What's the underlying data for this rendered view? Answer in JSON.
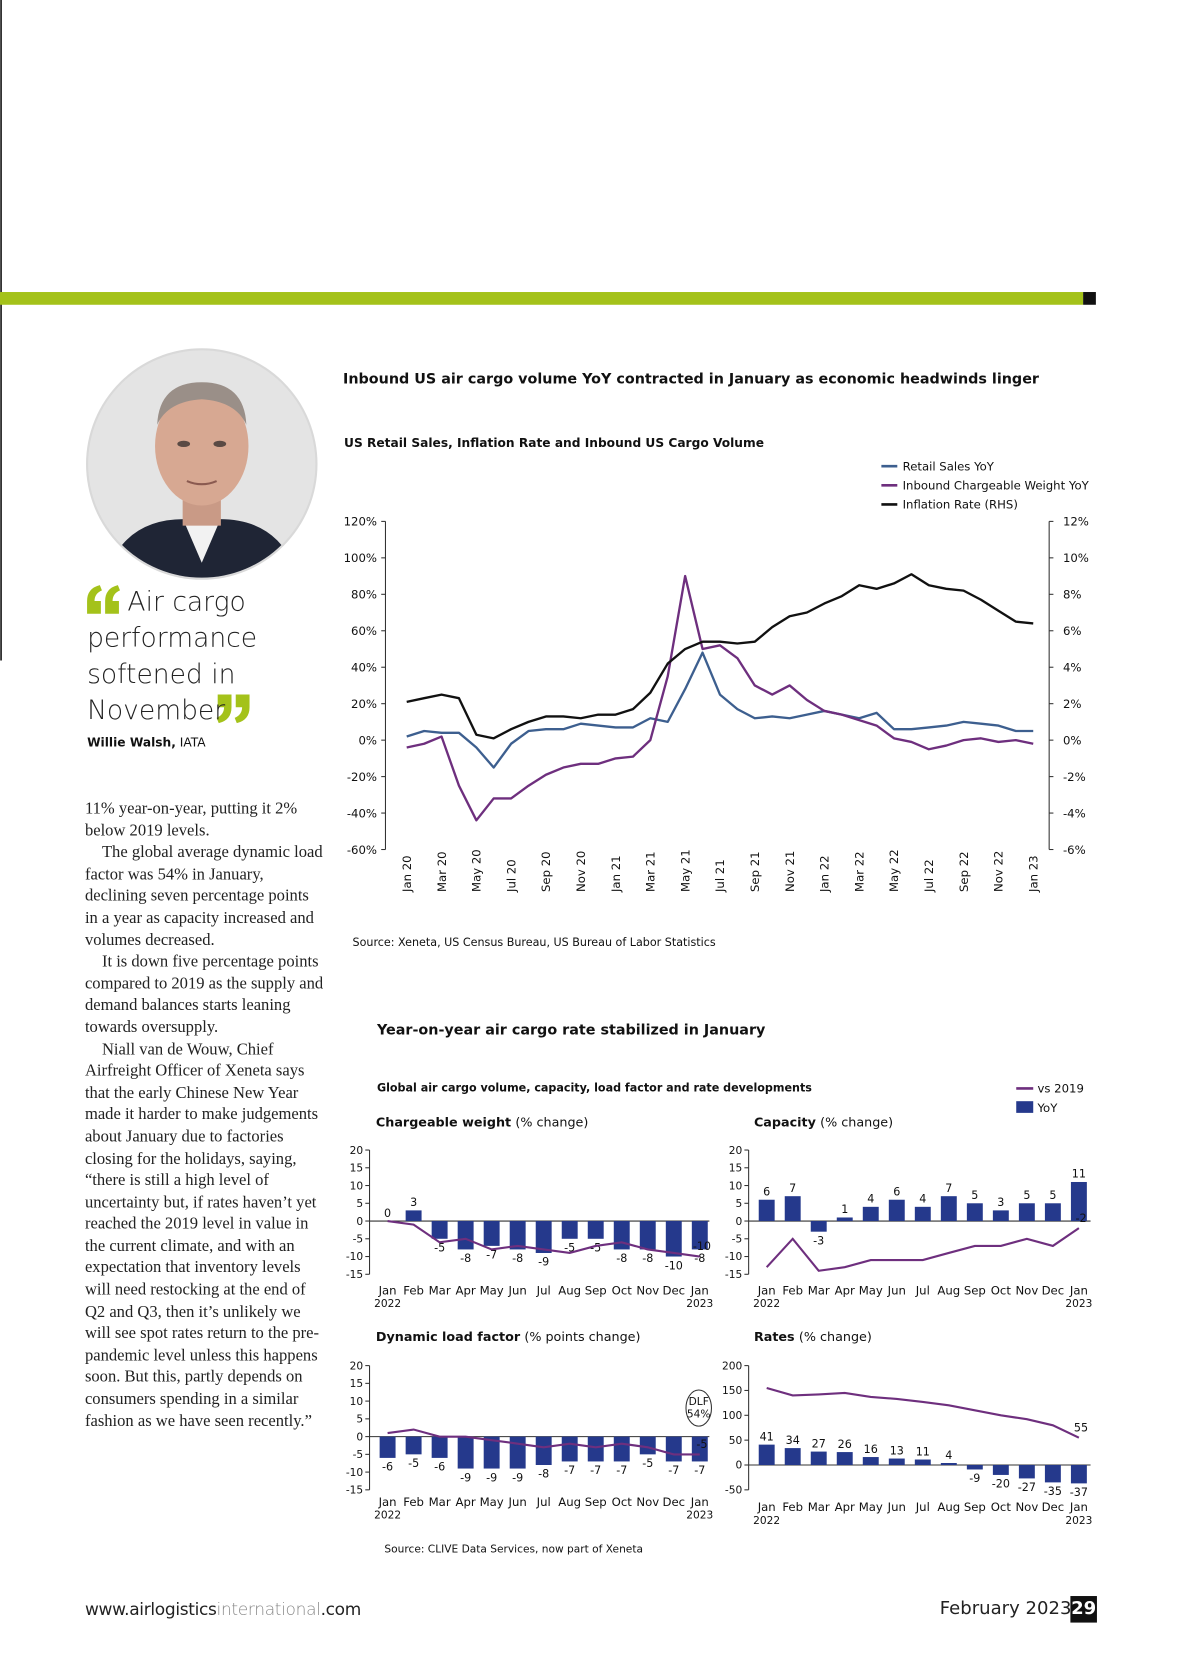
{
  "quote": {
    "text": "Air cargo performance softened in November",
    "author_name": "Willie Walsh,",
    "author_org": "IATA"
  },
  "body": [
    "11% year-on-year, putting it 2% below 2019 levels.",
    "The global average dynamic load factor was 54% in January, declining seven percentage points in a year as capacity increased and volumes decreased.",
    "It is down five percentage points compared to 2019 as the supply and demand balances starts leaning towards oversupply.",
    "Niall van de Wouw, Chief Airfreight Officer of Xeneta says that the early Chinese New Year made it harder to make judgements about January due to factories closing for the holidays, saying, “there is still a high level of uncertainty but, if rates haven’t yet reached the 2019 level in value in the current climate, and with an expectation that inventory levels will need restocking at the end of Q2 and Q3, then it’s unlikely we will see spot rates return to the pre-pandemic level unless this happens soon. But this, partly depends on consumers spending in a similar fashion as we have seen recently.”"
  ],
  "rates_section": {
    "title": "Year-on-year air cargo rate stabilized in January",
    "subtitle": "Global air cargo volume, capacity, load factor and rate developments",
    "source": "Source: CLIVE Data Services, now part of Xeneta"
  },
  "footer": {
    "url": [
      "www.airlogistics",
      "international",
      ".com"
    ],
    "date": "February 2023",
    "page": 29
  },
  "chart_data": [
    {
      "type": "line",
      "title": "Inbound US air cargo volume YoY contracted in January as economic headwinds linger",
      "subtitle": "US Retail Sales, Inflation Rate and Inbound US Cargo Volume",
      "source": "Source: Xeneta, US Census Bureau, US Bureau of Labor Statistics",
      "categories": [
        "Jan 20",
        null,
        "Mar 20",
        null,
        "May 20",
        null,
        "Jul 20",
        null,
        "Sep 20",
        null,
        "Nov 20",
        null,
        "Jan 21",
        null,
        "Mar 21",
        null,
        "May 21",
        null,
        "Jul 21",
        null,
        "Sep 21",
        null,
        "Nov 21",
        null,
        "Jan 22",
        null,
        "Mar 22",
        null,
        "May 22",
        null,
        "Jul 22",
        null,
        "Sep 22",
        null,
        "Nov 22",
        null,
        "Jan 23"
      ],
      "ylim": [
        -60,
        120
      ],
      "yticks": [
        {
          "value": -60,
          "label": "-60%"
        },
        {
          "value": -40,
          "label": "-40%"
        },
        {
          "value": -20,
          "label": "-20%"
        },
        {
          "value": 0,
          "label": "0%"
        },
        {
          "value": 20,
          "label": "20%"
        },
        {
          "value": 40,
          "label": "40%"
        },
        {
          "value": 60,
          "label": "60%"
        },
        {
          "value": 80,
          "label": "80%"
        },
        {
          "value": 100,
          "label": "100%"
        },
        {
          "value": 120,
          "label": "120%"
        }
      ],
      "y2lim": [
        -6,
        12
      ],
      "y2ticks": [
        {
          "value": -6,
          "label": "-6%"
        },
        {
          "value": -4,
          "label": "-4%"
        },
        {
          "value": -2,
          "label": "-2%"
        },
        {
          "value": 0,
          "label": "0%"
        },
        {
          "value": 2,
          "label": "2%"
        },
        {
          "value": 4,
          "label": "4%"
        },
        {
          "value": 6,
          "label": "6%"
        },
        {
          "value": 8,
          "label": "8%"
        },
        {
          "value": 10,
          "label": "10%"
        },
        {
          "value": 12,
          "label": "12%"
        }
      ],
      "series": [
        {
          "name": "Retail Sales YoY",
          "color": "#3d5f8f",
          "values": [
            2,
            5,
            4,
            4,
            -4,
            -15,
            -2,
            5,
            6,
            6,
            9,
            8,
            7,
            7,
            12,
            10,
            28,
            48,
            25,
            17,
            12,
            13,
            12,
            14,
            16,
            14,
            12,
            15,
            6,
            6,
            7,
            8,
            10,
            9,
            8,
            5,
            5
          ]
        },
        {
          "name": "Inbound Chargeable Weight YoY",
          "color": "#6e2f7e",
          "values": [
            -4,
            -2,
            2,
            -25,
            -44,
            -32,
            -32,
            -25,
            -19,
            -15,
            -13,
            -13,
            -10,
            -9,
            0,
            35,
            90,
            50,
            52,
            45,
            30,
            25,
            30,
            22,
            16,
            14,
            11,
            8,
            1,
            -1,
            -5,
            -3,
            0,
            1,
            -1,
            0,
            -2
          ]
        },
        {
          "name": "Inflation Rate (RHS)",
          "color": "#111111",
          "axis": "y2",
          "values": [
            2.1,
            2.3,
            2.5,
            2.3,
            0.3,
            0.1,
            0.6,
            1.0,
            1.3,
            1.3,
            1.2,
            1.4,
            1.4,
            1.7,
            2.6,
            4.2,
            5.0,
            5.4,
            5.4,
            5.3,
            5.4,
            6.2,
            6.8,
            7.0,
            7.5,
            7.9,
            8.5,
            8.3,
            8.6,
            9.1,
            8.5,
            8.3,
            8.2,
            7.7,
            7.1,
            6.5,
            6.4
          ]
        }
      ]
    },
    {
      "type": "bar",
      "title": "Chargeable weight",
      "unit": "(% change)",
      "categories": [
        "Jan",
        "Feb",
        "Mar",
        "Apr",
        "May",
        "Jun",
        "Jul",
        "Aug",
        "Sep",
        "Oct",
        "Nov",
        "Dec",
        "Jan"
      ],
      "years": [
        "2022",
        "2023"
      ],
      "ylim": [
        -15,
        20
      ],
      "yticks": [
        -15,
        -10,
        -5,
        0,
        5,
        10,
        15,
        20
      ],
      "line_end_label": true,
      "series": [
        {
          "name": "YoY",
          "type": "bar",
          "color": "#25398c",
          "values": [
            0,
            3,
            -5,
            -8,
            -7,
            -8,
            -9,
            -5,
            -5,
            -8,
            -8,
            -10,
            -8
          ]
        },
        {
          "name": "vs 2019",
          "type": "line",
          "color": "#6e2f7e",
          "values": [
            0,
            -1,
            -6,
            -5,
            -8,
            -7,
            -8,
            -9,
            -7,
            -6,
            -8,
            -9,
            -10
          ]
        }
      ]
    },
    {
      "type": "bar",
      "title": "Capacity",
      "unit": "(% change)",
      "categories": [
        "Jan",
        "Feb",
        "Mar",
        "Apr",
        "May",
        "Jun",
        "Jul",
        "Aug",
        "Sep",
        "Oct",
        "Nov",
        "Dec",
        "Jan"
      ],
      "years": [
        "2022",
        "2023"
      ],
      "ylim": [
        -15,
        20
      ],
      "yticks": [
        -15,
        -10,
        -5,
        0,
        5,
        10,
        15,
        20
      ],
      "line_end_label": true,
      "series": [
        {
          "name": "YoY",
          "type": "bar",
          "color": "#25398c",
          "values": [
            6,
            7,
            -3,
            1,
            4,
            6,
            4,
            7,
            5,
            3,
            5,
            5,
            11
          ]
        },
        {
          "name": "vs 2019",
          "type": "line",
          "color": "#6e2f7e",
          "values": [
            -13,
            -5,
            -14,
            -13,
            -11,
            -11,
            -11,
            -9,
            -7,
            -7,
            -5,
            -7,
            -2
          ]
        }
      ]
    },
    {
      "type": "bar",
      "title": "Dynamic load factor",
      "unit": "(% points change)",
      "categories": [
        "Jan",
        "Feb",
        "Mar",
        "Apr",
        "May",
        "Jun",
        "Jul",
        "Aug",
        "Sep",
        "Oct",
        "Nov",
        "Dec",
        "Jan"
      ],
      "years": [
        "2022",
        "2023"
      ],
      "ylim": [
        -15,
        20
      ],
      "yticks": [
        -15,
        -10,
        -5,
        0,
        5,
        10,
        15,
        20
      ],
      "line_end_label": true,
      "annotation": [
        "DLF",
        "54%"
      ],
      "series": [
        {
          "name": "YoY",
          "type": "bar",
          "color": "#25398c",
          "values": [
            -6,
            -5,
            -6,
            -9,
            -9,
            -9,
            -8,
            -7,
            -7,
            -7,
            -5,
            -7,
            -7
          ]
        },
        {
          "name": "vs 2019",
          "type": "line",
          "color": "#6e2f7e",
          "values": [
            1,
            2,
            0,
            0,
            -1,
            -2,
            -3,
            -2,
            -3,
            -2,
            -3,
            -5,
            -5
          ]
        }
      ]
    },
    {
      "type": "bar",
      "title": "Rates",
      "unit": "(% change)",
      "categories": [
        "Jan",
        "Feb",
        "Mar",
        "Apr",
        "May",
        "Jun",
        "Jul",
        "Aug",
        "Sep",
        "Oct",
        "Nov",
        "Dec",
        "Jan"
      ],
      "years": [
        "2022",
        "2023"
      ],
      "ylim": [
        -50,
        200
      ],
      "yticks": [
        -50,
        0,
        50,
        100,
        150,
        200
      ],
      "line_end_label": true,
      "series": [
        {
          "name": "YoY",
          "type": "bar",
          "color": "#25398c",
          "values": [
            41,
            34,
            27,
            26,
            16,
            13,
            11,
            4,
            -9,
            -20,
            -27,
            -35,
            -37
          ]
        },
        {
          "name": "vs 2019",
          "type": "line",
          "color": "#6e2f7e",
          "values": [
            155,
            140,
            142,
            145,
            137,
            133,
            127,
            120,
            110,
            100,
            92,
            80,
            55
          ]
        }
      ]
    }
  ]
}
